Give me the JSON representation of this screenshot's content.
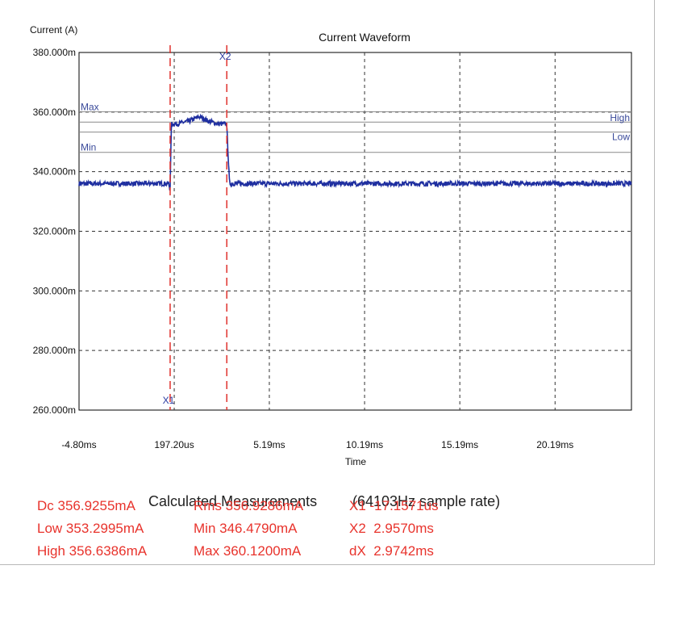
{
  "chart_data": {
    "type": "line",
    "title": "Current Waveform",
    "ylabel": "Current (A)",
    "xlabel": "Time",
    "xlim": [
      -4.8,
      24.2
    ],
    "ylim": [
      260,
      380
    ],
    "x_unit": "ms",
    "y_unit": "mA",
    "x_ticks": [
      -4.8,
      0.1972,
      5.19,
      10.19,
      15.19,
      20.19
    ],
    "x_tick_labels": [
      "-4.80ms",
      "197.20us",
      "5.19ms",
      "10.19ms",
      "15.19ms",
      "20.19ms"
    ],
    "y_ticks": [
      380,
      360,
      340,
      320,
      300,
      280,
      260
    ],
    "y_tick_labels": [
      "380.000m",
      "360.000m",
      "340.000m",
      "320.000m",
      "300.000m",
      "280.000m",
      "260.000m"
    ],
    "grid": true,
    "series": [
      {
        "color": "#1f2fa0",
        "x": [
          -4.8,
          -0.1,
          -0.02,
          0.05,
          0.3,
          1.0,
          1.5,
          2.0,
          2.5,
          2.95,
          3.1,
          6.0,
          10.0,
          15.0,
          20.0,
          24.2
        ],
        "y": [
          336,
          336,
          334,
          356,
          356,
          357,
          358.5,
          357,
          356,
          356,
          336,
          336,
          336,
          336,
          336,
          336
        ]
      }
    ],
    "reference_lines": [
      {
        "label": "Max",
        "y": 360.12
      },
      {
        "label": "High",
        "y": 356.64
      },
      {
        "label": "Low",
        "y": 353.3
      },
      {
        "label": "Min",
        "y": 346.48
      }
    ],
    "markers": [
      {
        "label": "X1",
        "x": -0.0172
      },
      {
        "label": "X2",
        "x": 2.957
      }
    ],
    "colors": {
      "trace": "#1f2fa0",
      "markers": "#e0322d",
      "ref_lines": "#8a8a8a"
    }
  },
  "measurements": {
    "heading": "Calculated Measurements",
    "sample_rate": "(64103Hz sample rate)",
    "rows": [
      [
        "Dc 356.9255mA",
        "Rms 356.9286mA",
        "X1 -17.1571us"
      ],
      [
        "Low 353.2995mA",
        "Min 346.4790mA",
        "X2  2.9570ms"
      ],
      [
        "High 356.6386mA",
        "Max 360.1200mA",
        "dX  2.9742ms"
      ]
    ]
  }
}
